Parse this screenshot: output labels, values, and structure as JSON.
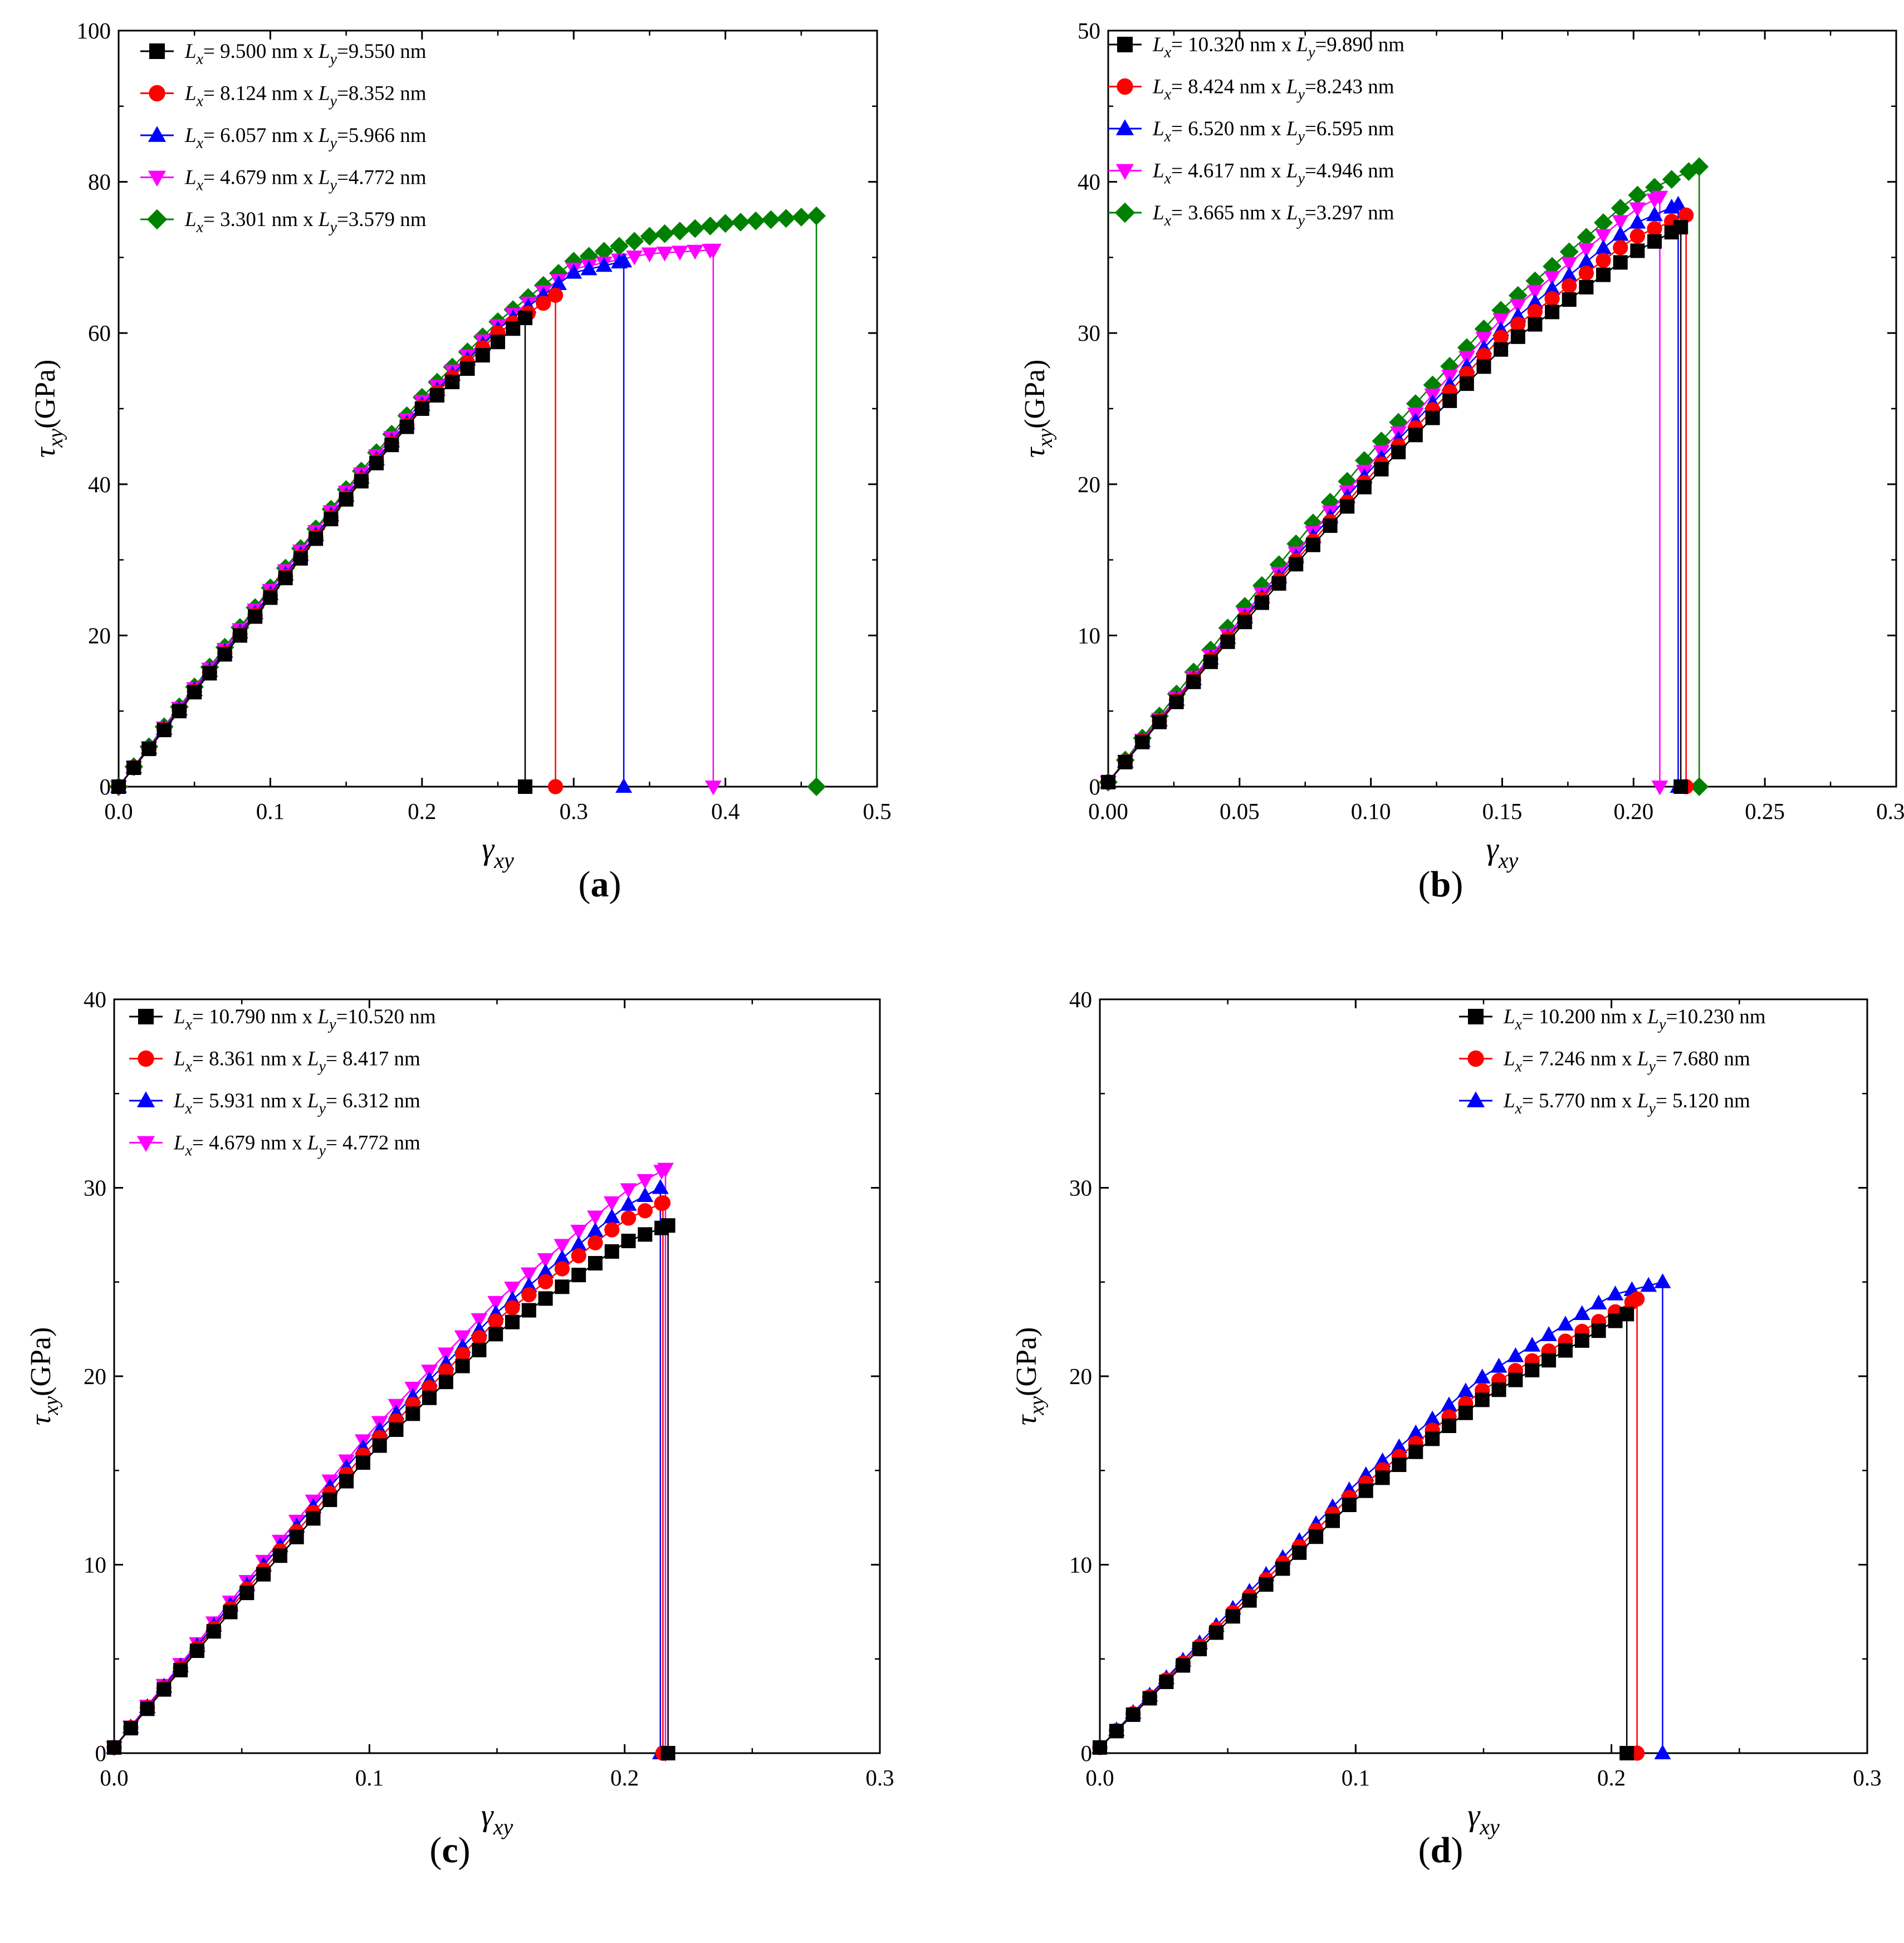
{
  "chart_data": [
    {
      "panel": "(a)",
      "type": "line",
      "xlabel": "γxy",
      "ylabel": "τxy(GPa)",
      "xlim": [
        0,
        0.5
      ],
      "ylim": [
        0,
        100
      ],
      "xticks": [
        "0.0",
        "0.1",
        "0.2",
        "0.3",
        "0.4",
        "0.5"
      ],
      "yticks": [
        "0",
        "20",
        "40",
        "60",
        "80",
        "100"
      ],
      "xstep": 0.01,
      "legend_position": "top-left",
      "series": [
        {
          "name": "Lx= 9.500 nm x Ly=9.550 nm",
          "lx": "9.500",
          "ly": "9.550",
          "pad": "",
          "color": "#000000",
          "marker": "square",
          "failure_strain": 0.268,
          "failure_stress": 62,
          "anchors": [
            [
              0,
              0
            ],
            [
              0.05,
              12.5
            ],
            [
              0.1,
              25
            ],
            [
              0.15,
              38
            ],
            [
              0.2,
              50
            ],
            [
              0.268,
              62
            ]
          ]
        },
        {
          "name": "Lx= 8.124 nm x Ly=8.352 nm",
          "lx": "8.124",
          "ly": "8.352",
          "pad": "",
          "color": "#ff0000",
          "marker": "circle",
          "failure_strain": 0.288,
          "failure_stress": 65,
          "anchors": [
            [
              0,
              0
            ],
            [
              0.05,
              12.6
            ],
            [
              0.1,
              25.2
            ],
            [
              0.15,
              38.2
            ],
            [
              0.2,
              50.2
            ],
            [
              0.25,
              60
            ],
            [
              0.288,
              65
            ]
          ]
        },
        {
          "name": "Lx= 6.057 nm x Ly=5.966 nm",
          "lx": "6.057",
          "ly": "5.966",
          "pad": "",
          "color": "#0000ff",
          "marker": "triangle-up",
          "failure_strain": 0.333,
          "failure_stress": 69.5,
          "anchors": [
            [
              0,
              0
            ],
            [
              0.05,
              12.8
            ],
            [
              0.1,
              25.5
            ],
            [
              0.15,
              38.5
            ],
            [
              0.2,
              50.5
            ],
            [
              0.25,
              60.5
            ],
            [
              0.3,
              68
            ],
            [
              0.333,
              69.5
            ]
          ]
        },
        {
          "name": "Lx= 4.679 nm x Ly=4.772 nm",
          "lx": "4.679",
          "ly": "4.772",
          "pad": "",
          "color": "#ff00ff",
          "marker": "triangle-down",
          "failure_strain": 0.392,
          "failure_stress": 71,
          "anchors": [
            [
              0,
              0
            ],
            [
              0.05,
              13
            ],
            [
              0.1,
              26
            ],
            [
              0.15,
              39
            ],
            [
              0.2,
              51
            ],
            [
              0.25,
              61
            ],
            [
              0.3,
              68.5
            ],
            [
              0.35,
              70.5
            ],
            [
              0.392,
              71
            ]
          ]
        },
        {
          "name": "Lx= 3.301 nm x Ly=3.579 nm",
          "lx": "3.301",
          "ly": "3.579",
          "pad": "",
          "color": "#008000",
          "marker": "diamond",
          "failure_strain": 0.46,
          "failure_stress": 75.5,
          "anchors": [
            [
              0,
              0
            ],
            [
              0.05,
              13.2
            ],
            [
              0.1,
              26.3
            ],
            [
              0.15,
              39.3
            ],
            [
              0.2,
              51.5
            ],
            [
              0.25,
              61.5
            ],
            [
              0.3,
              69.5
            ],
            [
              0.35,
              72.8
            ],
            [
              0.4,
              74.5
            ],
            [
              0.46,
              75.5
            ]
          ]
        }
      ]
    },
    {
      "panel": "(b)",
      "type": "line",
      "xlabel": "γxy",
      "ylabel": "τxy(GPa)",
      "xlim": [
        0,
        0.3
      ],
      "ylim": [
        0,
        50
      ],
      "xticks": [
        "0.00",
        "0.05",
        "0.10",
        "0.15",
        "0.20",
        "0.25",
        "0.30"
      ],
      "yticks": [
        "0",
        "10",
        "20",
        "30",
        "40",
        "50"
      ],
      "xstep": 0.0065,
      "legend_position": "top-left",
      "series": [
        {
          "name": "Lx= 10.320 nm x Ly=9.890 nm",
          "lx": "10.320",
          "ly": "9.890",
          "pad": "",
          "color": "#000000",
          "marker": "square",
          "failure_strain": 0.218,
          "failure_stress": 37,
          "anchors": [
            [
              0,
              0.3
            ],
            [
              0.05,
              10.5
            ],
            [
              0.1,
              20.3
            ],
            [
              0.15,
              29
            ],
            [
              0.2,
              35.3
            ],
            [
              0.218,
              37
            ]
          ]
        },
        {
          "name": "Lx= 8.424 nm x Ly=8.243 nm",
          "lx": "8.424",
          "ly": "8.243",
          "pad": "   ",
          "color": "#ff0000",
          "marker": "circle",
          "failure_strain": 0.22,
          "failure_stress": 37.8,
          "anchors": [
            [
              0,
              0.3
            ],
            [
              0.05,
              10.7
            ],
            [
              0.1,
              20.6
            ],
            [
              0.15,
              29.8
            ],
            [
              0.2,
              36.3
            ],
            [
              0.22,
              37.8
            ]
          ]
        },
        {
          "name": "Lx= 6.520 nm x Ly=6.595 nm",
          "lx": "6.520",
          "ly": "6.595",
          "pad": "   ",
          "color": "#0000ff",
          "marker": "triangle-up",
          "failure_strain": 0.217,
          "failure_stress": 38.5,
          "anchors": [
            [
              0,
              0.3
            ],
            [
              0.05,
              10.8
            ],
            [
              0.1,
              21
            ],
            [
              0.15,
              30.3
            ],
            [
              0.2,
              37.2
            ],
            [
              0.217,
              38.5
            ]
          ]
        },
        {
          "name": "Lx= 4.617 nm x Ly=4.946 nm",
          "lx": "4.617",
          "ly": "4.946",
          "pad": "   ",
          "color": "#ff00ff",
          "marker": "triangle-down",
          "failure_strain": 0.21,
          "failure_stress": 39,
          "anchors": [
            [
              0,
              0.3
            ],
            [
              0.05,
              11
            ],
            [
              0.1,
              21.4
            ],
            [
              0.15,
              31
            ],
            [
              0.2,
              38.1
            ],
            [
              0.21,
              39
            ]
          ]
        },
        {
          "name": "Lx= 3.665 nm x Ly=3.297 nm",
          "lx": "3.665",
          "ly": "3.297",
          "pad": "   ",
          "color": "#008000",
          "marker": "diamond",
          "failure_strain": 0.225,
          "failure_stress": 41,
          "anchors": [
            [
              0,
              0.3
            ],
            [
              0.05,
              11.5
            ],
            [
              0.1,
              22.1
            ],
            [
              0.15,
              31.6
            ],
            [
              0.2,
              39
            ],
            [
              0.225,
              41
            ]
          ]
        }
      ]
    },
    {
      "panel": "(c)",
      "type": "line",
      "xlabel": "γxy",
      "ylabel": "τxy(GPa)",
      "xlim": [
        0,
        0.3
      ],
      "ylim": [
        0,
        40
      ],
      "xticks": [
        "0.0",
        "0.1",
        "0.2",
        "0.3"
      ],
      "yticks": [
        "0",
        "10",
        "20",
        "30",
        "40"
      ],
      "xstep": 0.0065,
      "legend_position": "top-left",
      "series": [
        {
          "name": "Lx= 10.790 nm x Ly=10.520 nm",
          "lx": "10.790",
          "ly": "10.520",
          "pad": "",
          "color": "#000000",
          "marker": "square",
          "failure_strain": 0.217,
          "failure_stress": 28,
          "anchors": [
            [
              0,
              0.3
            ],
            [
              0.05,
              8.2
            ],
            [
              0.1,
              15.8
            ],
            [
              0.15,
              22.3
            ],
            [
              0.2,
              27.1
            ],
            [
              0.217,
              28
            ]
          ]
        },
        {
          "name": "Lx= 8.361 nm x Ly= 8.417 nm",
          "lx": "8.361",
          "ly": " 8.417",
          "pad": "   ",
          "color": "#ff0000",
          "marker": "circle",
          "failure_strain": 0.215,
          "failure_stress": 29.2,
          "anchors": [
            [
              0,
              0.3
            ],
            [
              0.05,
              8.4
            ],
            [
              0.1,
              16.2
            ],
            [
              0.15,
              23
            ],
            [
              0.2,
              28.3
            ],
            [
              0.215,
              29.2
            ]
          ]
        },
        {
          "name": "Lx= 5.931 nm x Ly= 6.312 nm",
          "lx": "5.931",
          "ly": " 6.312",
          "pad": "   ",
          "color": "#0000ff",
          "marker": "triangle-up",
          "failure_strain": 0.214,
          "failure_stress": 30,
          "anchors": [
            [
              0,
              0.3
            ],
            [
              0.05,
              8.6
            ],
            [
              0.1,
              16.6
            ],
            [
              0.15,
              23.4
            ],
            [
              0.2,
              29
            ],
            [
              0.214,
              30
            ]
          ]
        },
        {
          "name": "Lx= 4.679 nm x Ly= 4.772 nm",
          "lx": "4.679",
          "ly": " 4.772",
          "pad": "   ",
          "color": "#ff00ff",
          "marker": "triangle-down",
          "failure_strain": 0.216,
          "failure_stress": 31,
          "anchors": [
            [
              0,
              0.3
            ],
            [
              0.05,
              8.8
            ],
            [
              0.1,
              17
            ],
            [
              0.15,
              24
            ],
            [
              0.2,
              29.8
            ],
            [
              0.216,
              31
            ]
          ]
        }
      ]
    },
    {
      "panel": "(d)",
      "type": "line",
      "xlabel": "γxy",
      "ylabel": "τxy(GPa)",
      "xlim": [
        0,
        0.3
      ],
      "ylim": [
        0,
        40
      ],
      "xticks": [
        "0.0",
        "0.1",
        "0.2",
        "0.3"
      ],
      "yticks": [
        "0",
        "10",
        "20",
        "30",
        "40"
      ],
      "xstep": 0.0065,
      "legend_position": "top-right",
      "series": [
        {
          "name": "Lx= 10.200 nm x Ly=10.230 nm",
          "lx": "10.200",
          "ly": "10.230",
          "pad": "",
          "color": "#000000",
          "marker": "square",
          "failure_strain": 0.206,
          "failure_stress": 23.3,
          "anchors": [
            [
              0,
              0.3
            ],
            [
              0.05,
              7
            ],
            [
              0.1,
              13.5
            ],
            [
              0.15,
              18.8
            ],
            [
              0.206,
              23.3
            ]
          ]
        },
        {
          "name": "Lx= 7.246 nm x Ly= 7.680 nm",
          "lx": "7.246",
          "ly": " 7.680",
          "pad": "   ",
          "color": "#ff0000",
          "marker": "circle",
          "failure_strain": 0.21,
          "failure_stress": 24.1,
          "anchors": [
            [
              0,
              0.3
            ],
            [
              0.05,
              7.2
            ],
            [
              0.1,
              13.9
            ],
            [
              0.15,
              19.3
            ],
            [
              0.21,
              24.1
            ]
          ]
        },
        {
          "name": "Lx= 5.770 nm x Ly= 5.120 nm",
          "lx": "5.770",
          "ly": " 5.120",
          "pad": "   ",
          "color": "#0000ff",
          "marker": "triangle-up",
          "failure_strain": 0.22,
          "failure_stress": 25,
          "anchors": [
            [
              0,
              0.3
            ],
            [
              0.05,
              7.4
            ],
            [
              0.1,
              14.3
            ],
            [
              0.15,
              20
            ],
            [
              0.2,
              24.3
            ],
            [
              0.22,
              25
            ]
          ]
        }
      ]
    }
  ]
}
